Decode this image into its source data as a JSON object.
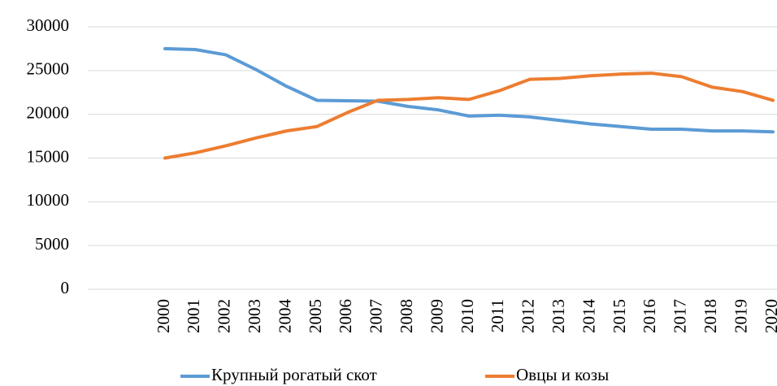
{
  "chart_data": {
    "type": "line",
    "categories": [
      "2000",
      "2001",
      "2002",
      "2003",
      "2004",
      "2005",
      "2006",
      "2007",
      "2008",
      "2009",
      "2010",
      "2011",
      "2012",
      "2013",
      "2014",
      "2015",
      "2016",
      "2017",
      "2018",
      "2019",
      "2020"
    ],
    "series": [
      {
        "name": "Крупный рогатый скот",
        "color": "#5b9bd5",
        "values": [
          27500,
          27400,
          26800,
          25100,
          23200,
          21600,
          21550,
          21500,
          20900,
          20500,
          19800,
          19900,
          19700,
          19300,
          18900,
          18600,
          18300,
          18300,
          18100,
          18100,
          18000
        ]
      },
      {
        "name": "Овцы и козы",
        "color": "#ed7d31",
        "values": [
          15000,
          15600,
          16400,
          17300,
          18100,
          18600,
          20200,
          21600,
          21700,
          21900,
          21700,
          22700,
          24000,
          24100,
          24400,
          24600,
          24700,
          24300,
          23100,
          22600,
          21600
        ]
      }
    ],
    "ylim": [
      0,
      30000
    ],
    "yticks": [
      0,
      5000,
      10000,
      15000,
      20000,
      25000,
      30000
    ],
    "grid": true,
    "legend": "bottom"
  }
}
